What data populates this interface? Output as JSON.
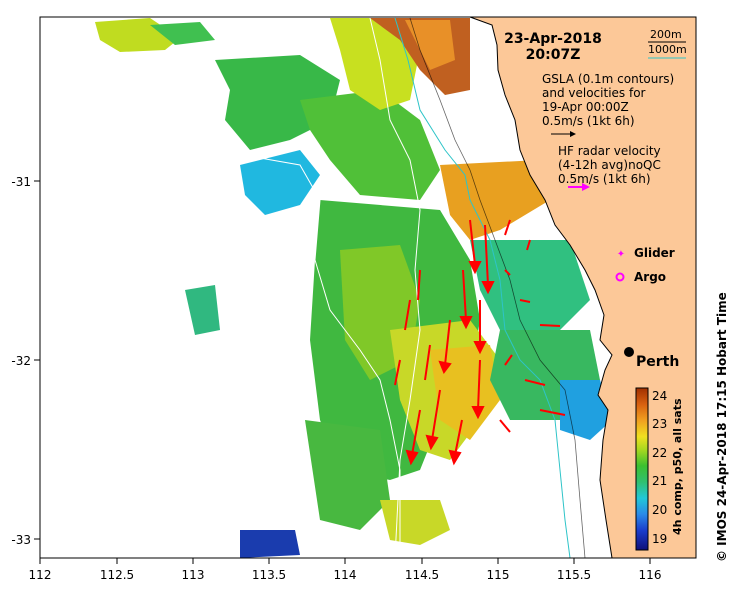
{
  "header": {
    "date": "23-Apr-2018",
    "time": "20:07Z"
  },
  "contours": {
    "c200": "200m",
    "c1000": "1000m",
    "c200_color": "#000000",
    "c1000_color": "#2ec4c8"
  },
  "gsla": {
    "line1": "GSLA (0.1m contours)",
    "line2": "and velocities for",
    "line3": "19-Apr 00:00Z",
    "scale": "0.5m/s (1kt 6h)",
    "arrow_color": "#000000"
  },
  "hf_radar": {
    "line1": "HF radar velocity",
    "line2": "(4-12h avg)noQC",
    "scale": "0.5m/s (1kt 6h)",
    "arrow_color": "#ff00ff"
  },
  "legend": {
    "glider": "Glider",
    "argo": "Argo",
    "marker_color": "#ff00ff"
  },
  "place": {
    "perth": "Perth"
  },
  "axes": {
    "x_ticks": [
      "112",
      "112.5",
      "113",
      "113.5",
      "114",
      "114.5",
      "115",
      "115.5",
      "116"
    ],
    "y_ticks": [
      "-31",
      "-32",
      "-33"
    ]
  },
  "colorbar": {
    "label": "4h comp, p50, all sats",
    "ticks": [
      "24",
      "23",
      "22",
      "21",
      "20",
      "19"
    ]
  },
  "credit": "© IMOS 24-Apr-2018 17:15 Hobart Time",
  "colors": {
    "land": "#fcc898",
    "current_arrows": "#ff0000"
  }
}
